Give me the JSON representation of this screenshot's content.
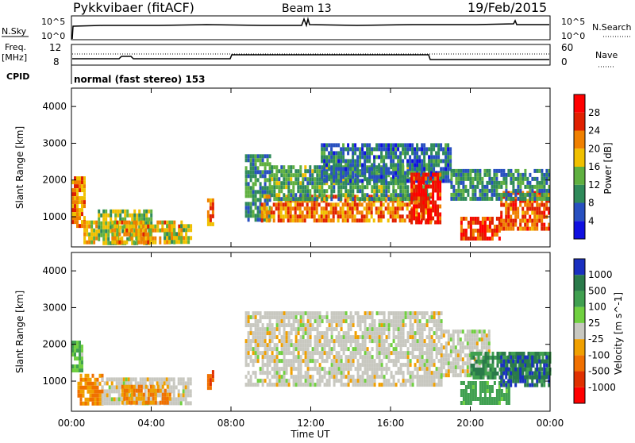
{
  "header": {
    "station": "Pykkvibaer (fitACF)",
    "beam": "Beam 13",
    "date": "19/Feb/2015"
  },
  "status_panels": {
    "nsky_label": "N.Sky",
    "nsky_top_tick": "10^5",
    "nsky_bottom_tick": "10^0",
    "nsearch_label": "N.Search",
    "freq_label": "Freq.",
    "freq_unit": "[MHz]",
    "freq_ticks": [
      "12",
      "8"
    ],
    "nave_label": "Nave",
    "nave_ticks": [
      "60",
      "0"
    ],
    "cpid_label": "CPID",
    "cpid_value": "normal (fast stereo) 153"
  },
  "chart_data": [
    {
      "type": "heatmap",
      "title": "",
      "ylabel": "Slant Range [km]",
      "ylim": [
        180,
        4500
      ],
      "y_ticks": [
        "1000",
        "2000",
        "3000",
        "4000"
      ],
      "x_ticks": [
        "00:00",
        "04:00",
        "08:00",
        "12:00",
        "16:00",
        "20:00",
        "00:00"
      ],
      "colorbar": {
        "label": "Power [dB]",
        "ticks": [
          "4",
          "8",
          "12",
          "16",
          "20",
          "24",
          "28"
        ],
        "colors": [
          "#1010e0",
          "#2850c0",
          "#2f8a5a",
          "#5fb040",
          "#f0c000",
          "#f08000",
          "#e02000",
          "#ff0000"
        ]
      },
      "regions": [
        {
          "t": [
            0.0,
            0.7
          ],
          "r": [
            700,
            2100
          ],
          "level": 22
        },
        {
          "t": [
            0.6,
            1.2
          ],
          "r": [
            300,
            900
          ],
          "level": 18
        },
        {
          "t": [
            1.2,
            4.0
          ],
          "r": [
            300,
            1200
          ],
          "level": 14
        },
        {
          "t": [
            2.0,
            5.5
          ],
          "r": [
            350,
            900
          ],
          "level": 20
        },
        {
          "t": [
            4.5,
            6.0
          ],
          "r": [
            300,
            800
          ],
          "level": 16
        },
        {
          "t": [
            6.8,
            7.1
          ],
          "r": [
            800,
            1500
          ],
          "level": 22
        },
        {
          "t": [
            8.7,
            10.0
          ],
          "r": [
            900,
            2700
          ],
          "level": 10
        },
        {
          "t": [
            9.5,
            18.0
          ],
          "r": [
            900,
            1600
          ],
          "level": 22
        },
        {
          "t": [
            10.0,
            18.0
          ],
          "r": [
            1500,
            2400
          ],
          "level": 12
        },
        {
          "t": [
            12.5,
            19.0
          ],
          "r": [
            2000,
            3000
          ],
          "level": 8
        },
        {
          "t": [
            17.0,
            18.5
          ],
          "r": [
            900,
            2200
          ],
          "level": 28
        },
        {
          "t": [
            19.5,
            21.5
          ],
          "r": [
            400,
            1000
          ],
          "level": 26
        },
        {
          "t": [
            21.5,
            24.0
          ],
          "r": [
            700,
            1700
          ],
          "level": 24
        },
        {
          "t": [
            19.0,
            24.0
          ],
          "r": [
            1500,
            2300
          ],
          "level": 10
        }
      ]
    },
    {
      "type": "heatmap",
      "title": "",
      "ylabel": "Slant Range [km]",
      "ylim": [
        180,
        4500
      ],
      "y_ticks": [
        "1000",
        "2000",
        "3000",
        "4000"
      ],
      "x_ticks": [
        "00:00",
        "04:00",
        "08:00",
        "12:00",
        "16:00",
        "20:00",
        "00:00"
      ],
      "xlabel": "Time UT",
      "colorbar": {
        "label": "Velocity [m s^-1]",
        "ticks": [
          "1000",
          "500",
          "100",
          "25",
          "-25",
          "-100",
          "-500",
          "-1000"
        ],
        "colors": [
          "#1a30c0",
          "#2a7a4a",
          "#40a050",
          "#70d040",
          "#c8c8c0",
          "#f0a000",
          "#f07000",
          "#e03000",
          "#ff0000"
        ]
      },
      "regions": [
        {
          "t": [
            0.0,
            0.5
          ],
          "r": [
            1300,
            2100
          ],
          "level": 100
        },
        {
          "t": [
            0.3,
            1.5
          ],
          "r": [
            400,
            1200
          ],
          "level": -100
        },
        {
          "t": [
            1.5,
            6.0
          ],
          "r": [
            400,
            1100
          ],
          "level": 0
        },
        {
          "t": [
            2.5,
            5.0
          ],
          "r": [
            400,
            900
          ],
          "level": -100
        },
        {
          "t": [
            6.8,
            7.1
          ],
          "r": [
            800,
            1300
          ],
          "level": -500
        },
        {
          "t": [
            8.7,
            18.5
          ],
          "r": [
            900,
            2900
          ],
          "level": 0
        },
        {
          "t": [
            18.5,
            21.0
          ],
          "r": [
            1200,
            2400
          ],
          "level": 0
        },
        {
          "t": [
            20.0,
            24.0
          ],
          "r": [
            1100,
            1800
          ],
          "level": 500
        },
        {
          "t": [
            19.5,
            22.0
          ],
          "r": [
            400,
            1000
          ],
          "level": 200
        },
        {
          "t": [
            21.5,
            24.0
          ],
          "r": [
            900,
            1700
          ],
          "level": 1000
        }
      ]
    }
  ]
}
